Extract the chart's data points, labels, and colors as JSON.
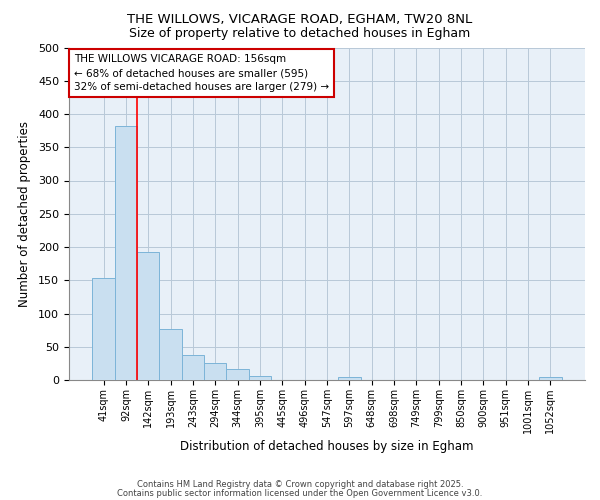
{
  "title1": "THE WILLOWS, VICARAGE ROAD, EGHAM, TW20 8NL",
  "title2": "Size of property relative to detached houses in Egham",
  "xlabel": "Distribution of detached houses by size in Egham",
  "ylabel": "Number of detached properties",
  "categories": [
    "41sqm",
    "92sqm",
    "142sqm",
    "193sqm",
    "243sqm",
    "294sqm",
    "344sqm",
    "395sqm",
    "445sqm",
    "496sqm",
    "547sqm",
    "597sqm",
    "648sqm",
    "698sqm",
    "749sqm",
    "799sqm",
    "850sqm",
    "900sqm",
    "951sqm",
    "1001sqm",
    "1052sqm"
  ],
  "values": [
    153,
    382,
    193,
    77,
    38,
    25,
    16,
    6,
    0,
    0,
    0,
    5,
    0,
    0,
    0,
    0,
    0,
    0,
    0,
    0,
    5
  ],
  "bar_color": "#c9dff0",
  "bar_edge_color": "#7cb4d8",
  "bar_edge_width": 0.7,
  "red_line_index": 2,
  "ylim": [
    0,
    500
  ],
  "yticks": [
    0,
    50,
    100,
    150,
    200,
    250,
    300,
    350,
    400,
    450,
    500
  ],
  "annotation_line1": "THE WILLOWS VICARAGE ROAD: 156sqm",
  "annotation_line2": "← 68% of detached houses are smaller (595)",
  "annotation_line3": "32% of semi-detached houses are larger (279) →",
  "annotation_box_color": "#cc0000",
  "plot_bg_color": "#e8f0f8",
  "grid_color": "#b8c8d8",
  "footer_text1": "Contains HM Land Registry data © Crown copyright and database right 2025.",
  "footer_text2": "Contains public sector information licensed under the Open Government Licence v3.0."
}
